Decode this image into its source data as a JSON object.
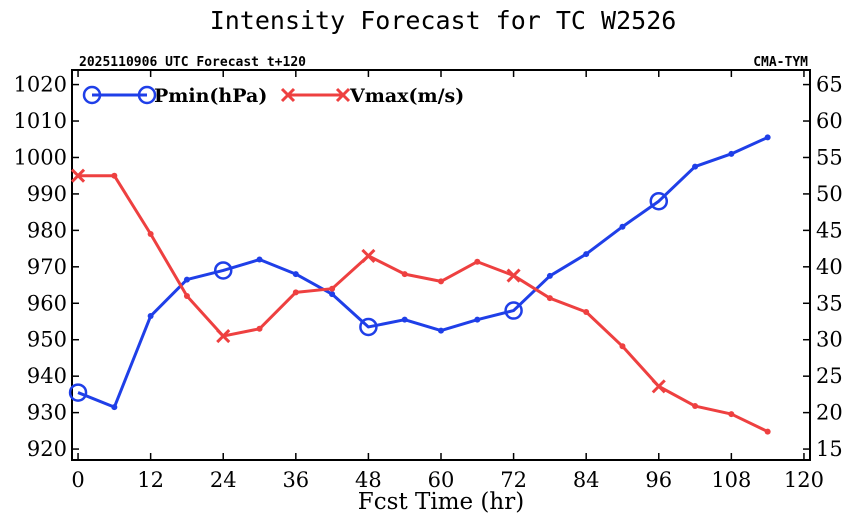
{
  "chart_data": {
    "type": "line",
    "title": "Intensity Forecast for TC W2526",
    "subtitle_left": "2025110906 UTC Forecast t+120",
    "subtitle_right": "CMA-TYM",
    "xlabel": "Fcst Time (hr)",
    "xlim": [
      -1,
      121
    ],
    "x_ticks": [
      0,
      12,
      24,
      36,
      48,
      60,
      72,
      84,
      96,
      108,
      120
    ],
    "x_tick_labels": [
      "0",
      "12",
      "24",
      "36",
      "48",
      "60",
      "72",
      "84",
      "96",
      "108",
      "120"
    ],
    "y_left": {
      "lim": [
        917,
        1024
      ],
      "ticks": [
        920,
        930,
        940,
        950,
        960,
        970,
        980,
        990,
        1000,
        1010,
        1020
      ],
      "tick_labels": [
        "920",
        "930",
        "940",
        "950",
        "960",
        "970",
        "980",
        "990",
        "1000",
        "1010",
        "1020"
      ]
    },
    "y_right": {
      "lim": [
        13.5,
        67
      ],
      "ticks": [
        15,
        20,
        25,
        30,
        35,
        40,
        45,
        50,
        55,
        60,
        65
      ],
      "tick_labels": [
        "15",
        "20",
        "25",
        "30",
        "35",
        "40",
        "45",
        "50",
        "55",
        "60",
        "65"
      ]
    },
    "x": [
      0,
      6,
      12,
      18,
      24,
      30,
      36,
      42,
      48,
      54,
      60,
      66,
      72,
      78,
      84,
      90,
      96,
      102,
      108,
      114
    ],
    "series": [
      {
        "name": "Pmin(hPa)",
        "axis": "left",
        "color": "#1f3fe8",
        "marker": "circle",
        "values": [
          935.5,
          931.5,
          956.5,
          966.5,
          969,
          972,
          968,
          962.5,
          953.5,
          955.5,
          952.5,
          955.5,
          958,
          967.5,
          973.5,
          981,
          988,
          997.5,
          1001,
          1005.5
        ]
      },
      {
        "name": "Vmax(m/s)",
        "axis": "right",
        "color": "#ee4040",
        "marker": "x",
        "values": [
          52.5,
          52.5,
          44.5,
          36,
          30.5,
          31.5,
          36.5,
          37,
          41.5,
          39,
          38,
          40.7,
          38.8,
          35.7,
          33.8,
          29.1,
          23.6,
          20.9,
          19.8,
          17.4
        ]
      }
    ],
    "big_marker_x": [
      0,
      24,
      48,
      72,
      96
    ],
    "legend": [
      "Pmin(hPa)",
      "Vmax(m/s)"
    ],
    "legend_position": "top-left"
  }
}
